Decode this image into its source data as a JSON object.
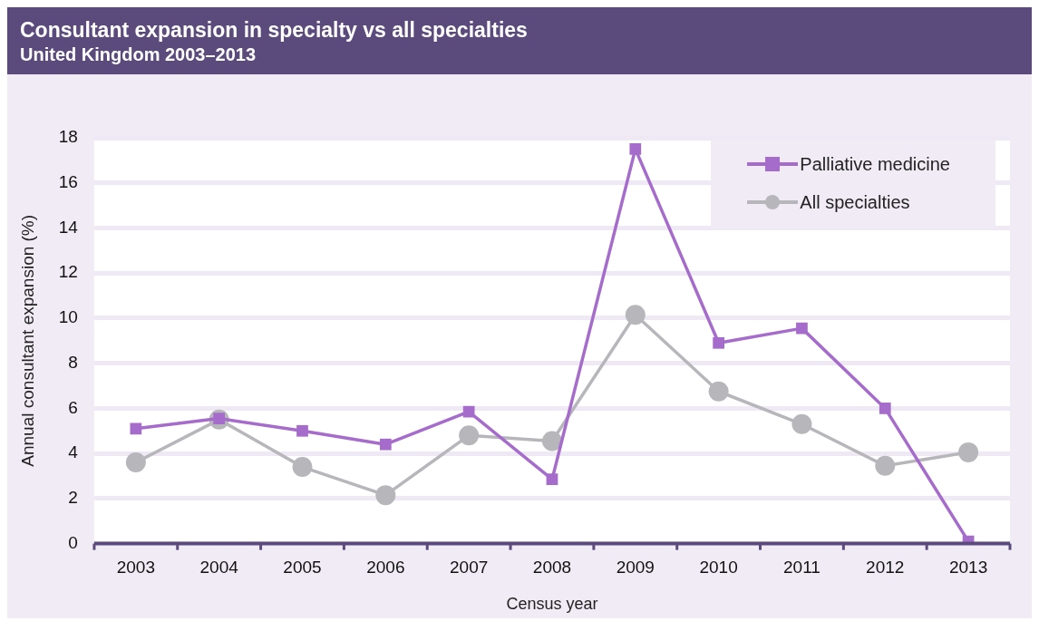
{
  "chart_data": {
    "type": "line",
    "title": "Consultant expansion in specialty vs all specialties",
    "subtitle": "United Kingdom 2003–2013",
    "xlabel": "Census year",
    "ylabel": "Annual consultant expansion (%)",
    "categories": [
      "2003",
      "2004",
      "2005",
      "2006",
      "2007",
      "2008",
      "2009",
      "2010",
      "2011",
      "2012",
      "2013"
    ],
    "series": [
      {
        "name": "Palliative medicine",
        "color": "#a66ccc",
        "marker": "square",
        "values": [
          5.1,
          5.55,
          5.0,
          4.4,
          5.85,
          2.85,
          17.5,
          8.9,
          9.55,
          6.0,
          0.1
        ]
      },
      {
        "name": "All specialties",
        "color": "#b7b7bb",
        "marker": "circle",
        "values": [
          3.6,
          5.5,
          3.4,
          2.15,
          4.8,
          4.55,
          10.15,
          6.75,
          5.3,
          3.45,
          4.05
        ]
      }
    ],
    "ylim": [
      0,
      18
    ],
    "yticks": [
      0,
      2,
      4,
      6,
      8,
      10,
      12,
      14,
      16,
      18
    ],
    "grid": "y",
    "legend": "top right"
  }
}
